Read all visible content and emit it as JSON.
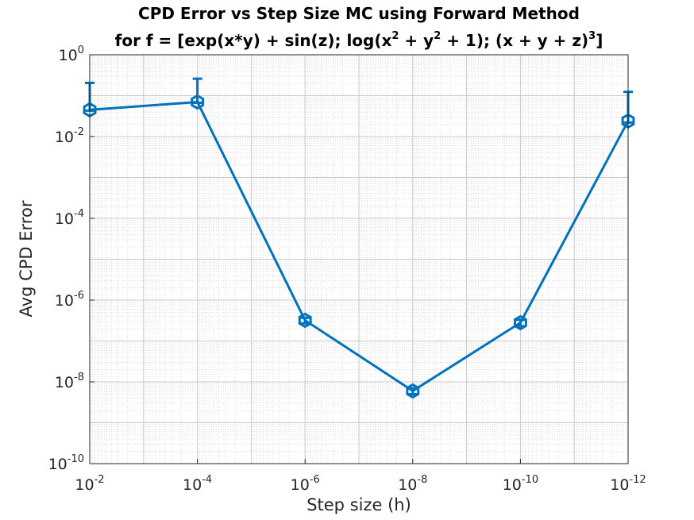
{
  "chart_data": {
    "type": "line",
    "title_line1": "CPD Error vs Step Size MC using Forward Method",
    "title_line2": {
      "p1": "for f = [exp(x*y) + sin(z); log(x",
      "s1": "2",
      "p2": " + y",
      "s2": "2",
      "p3": " + 1); (x + y + z)",
      "s3": "3",
      "p4": "]"
    },
    "xlabel": "Step size (h)",
    "ylabel": "Avg CPD Error",
    "x_scale": "log",
    "y_scale": "log",
    "x_reversed": true,
    "xlim": [
      0.01,
      1e-12
    ],
    "ylim": [
      1e-10,
      1
    ],
    "x_ticks": [
      {
        "base": "10",
        "exp": "-2"
      },
      {
        "base": "10",
        "exp": "-4"
      },
      {
        "base": "10",
        "exp": "-6"
      },
      {
        "base": "10",
        "exp": "-8"
      },
      {
        "base": "10",
        "exp": "-10"
      },
      {
        "base": "10",
        "exp": "-12"
      }
    ],
    "y_ticks": [
      {
        "base": "10",
        "exp": "0"
      },
      {
        "base": "10",
        "exp": "-2"
      },
      {
        "base": "10",
        "exp": "-4"
      },
      {
        "base": "10",
        "exp": "-6"
      },
      {
        "base": "10",
        "exp": "-8"
      },
      {
        "base": "10",
        "exp": "-10"
      }
    ],
    "grid": true,
    "minor_grid": true,
    "series": [
      {
        "color": "#0072bd",
        "marker": "hexagon",
        "x": [
          0.01,
          0.0001,
          1e-06,
          1e-08,
          1e-10,
          1e-12
        ],
        "y": [
          0.045,
          0.07,
          3.2e-07,
          6e-09,
          2.8e-07,
          0.024
        ],
        "err_lower": [
          0.002,
          0.003,
          5e-08,
          1e-09,
          5e-08,
          0.002
        ],
        "err_upper": [
          0.16,
          0.19,
          5e-08,
          1e-09,
          5e-08,
          0.1
        ]
      }
    ]
  }
}
